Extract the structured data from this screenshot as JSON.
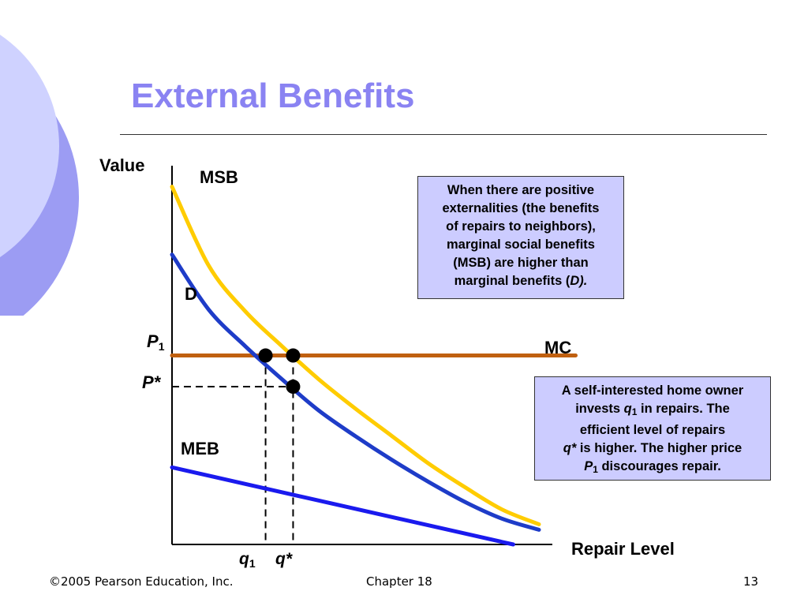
{
  "slide": {
    "title": "External Benefits",
    "footer_left": "©2005 Pearson Education, Inc.",
    "footer_center": "Chapter 18",
    "page_number": "13",
    "colors": {
      "title": "#8a83f2",
      "deco_light": "#cfd2ff",
      "deco_dark": "#9c9cf3",
      "note_fill": "#ccccff"
    }
  },
  "notes": {
    "top_lines": [
      "When there are positive",
      "externalities (the benefits",
      "of repairs to neighbors),",
      "marginal social benefits",
      "(MSB) are higher than"
    ],
    "top_last_prefix": "marginal benefits (",
    "top_last_italic": "D).",
    "bottom_line1": "A self-interested home owner",
    "bottom_line2_pre": "invests ",
    "bottom_line2_var": "q",
    "bottom_line2_sub": "1",
    "bottom_line2_post": " in repairs. The",
    "bottom_line3": "efficient level of repairs",
    "bottom_line4_var": "q*",
    "bottom_line4_post": " is higher. The higher price",
    "bottom_line5_var": "P",
    "bottom_line5_sub": "1",
    "bottom_line5_post": " discourages repair."
  },
  "chart_data": {
    "type": "line",
    "xlabel": "Repair Level",
    "ylabel": "Value",
    "xlim": [
      0,
      10
    ],
    "ylim": [
      0,
      10
    ],
    "grid": false,
    "series": [
      {
        "name": "MSB",
        "color": "#ffcc00",
        "x": [
          0,
          1,
          2,
          3,
          4,
          5,
          6,
          7,
          8,
          9,
          10
        ],
        "y": [
          9.75,
          7.6,
          6.35,
          5.4,
          4.5,
          3.7,
          2.95,
          2.2,
          1.55,
          0.95,
          0.55
        ]
      },
      {
        "name": "D",
        "color": "#1e3cc8",
        "x": [
          0,
          1,
          2,
          3,
          4,
          5,
          6,
          7,
          8,
          9,
          10
        ],
        "y": [
          7.9,
          6.4,
          5.4,
          4.5,
          3.65,
          2.95,
          2.3,
          1.7,
          1.15,
          0.7,
          0.4
        ]
      },
      {
        "name": "MEB",
        "color": "#1a1aee",
        "x": [
          0,
          9.3
        ],
        "y": [
          2.1,
          0
        ]
      },
      {
        "name": "MC",
        "color": "#c06010",
        "x": [
          0,
          11
        ],
        "y": [
          5.15,
          5.15
        ]
      }
    ],
    "points": [
      {
        "name": "q1-P1",
        "x": 2.55,
        "y": 5.15
      },
      {
        "name": "qstar-P1",
        "x": 3.3,
        "y": 5.15
      },
      {
        "name": "qstar-Pstar",
        "x": 3.3,
        "y": 4.3
      }
    ],
    "price_levels": [
      {
        "label": "P",
        "sub": "1",
        "y": 5.15
      },
      {
        "label": "P*",
        "sub": "",
        "y": 4.3
      }
    ],
    "quantity_levels": [
      {
        "label": "q",
        "sub": "1",
        "x": 2.55
      },
      {
        "label": "q*",
        "sub": "",
        "x": 3.3
      }
    ]
  }
}
